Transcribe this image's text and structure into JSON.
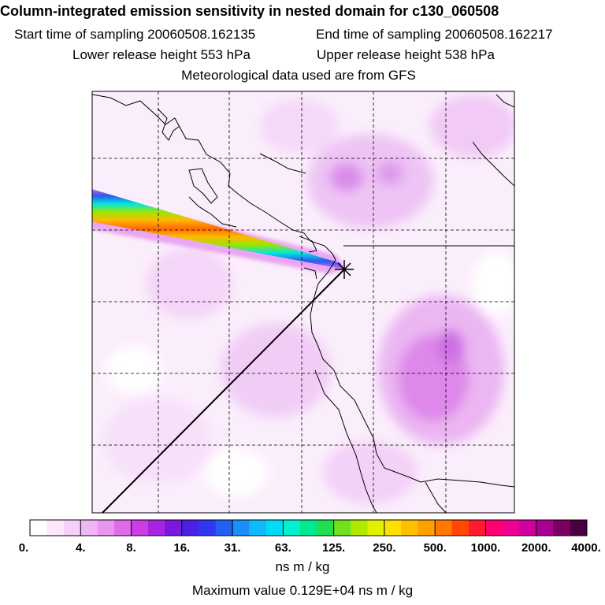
{
  "chart_data": {
    "type": "heatmap",
    "title": "Column-integrated emission sensitivity in nested domain for c130_060508",
    "sampling": {
      "start_label": "Start time of sampling",
      "start_value": "20060508.162135",
      "end_label": "End time of sampling",
      "end_value": "20060508.162217"
    },
    "release": {
      "lower_label": "Lower release height",
      "lower_value": "553 hPa",
      "upper_label": "Upper release height",
      "upper_value": "538 hPa"
    },
    "met_source": "Meteorological data used are from GFS",
    "colorbar": {
      "ticks": [
        "0.",
        "4.",
        "8.",
        "16.",
        "31.",
        "63.",
        "125.",
        "250.",
        "500.",
        "1000.",
        "2000.",
        "4000."
      ],
      "tick_values": [
        0,
        4,
        8,
        16,
        31,
        63,
        125,
        250,
        500,
        1000,
        2000,
        4000
      ],
      "colors": [
        "#ffffff",
        "#fbe8fc",
        "#f6d0f8",
        "#f0b5f4",
        "#e895ef",
        "#de6ce8",
        "#cc3de3",
        "#a824e0",
        "#7a18e0",
        "#4d20e6",
        "#3038ee",
        "#2060f4",
        "#1890f8",
        "#10b8fc",
        "#00dcf4",
        "#00f0d0",
        "#00e890",
        "#20e050",
        "#70e020",
        "#b0e800",
        "#e0f000",
        "#ffe000",
        "#ffc000",
        "#ffa000",
        "#ff7800",
        "#ff4800",
        "#ff1a30",
        "#ff0070",
        "#f00090",
        "#d000a0",
        "#a80090",
        "#7a0060",
        "#4a0040"
      ],
      "units": "ns m / kg"
    },
    "max_value_label": "Maximum value",
    "max_value": "0.129E+04 ns m / kg",
    "grid": true,
    "release_marker": "star"
  }
}
